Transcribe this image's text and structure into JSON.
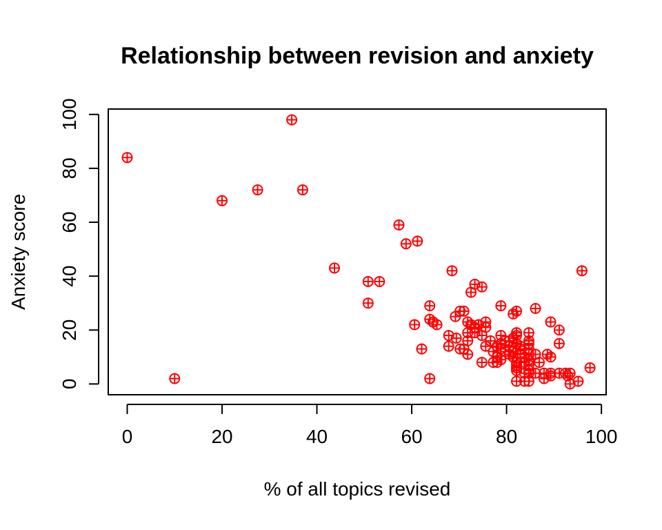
{
  "chart_data": {
    "type": "scatter",
    "title": "Relationship between revision and anxiety",
    "xlabel": "% of all topics revised",
    "ylabel": "Anxiety score",
    "xlim": [
      -4,
      101
    ],
    "ylim": [
      -4,
      102
    ],
    "x_ticks": [
      0,
      20,
      40,
      60,
      80,
      100
    ],
    "y_ticks": [
      0,
      20,
      40,
      60,
      80,
      100
    ],
    "grid": false,
    "legend": "none",
    "marker": "circle-plus",
    "colors": {
      "points": "#ff0000",
      "axes": "#000000",
      "background": "#ffffff"
    },
    "points": [
      [
        0,
        84
      ],
      [
        10,
        2
      ],
      [
        20,
        68
      ],
      [
        27.5,
        72
      ],
      [
        34.7,
        98
      ],
      [
        37,
        72
      ],
      [
        43.7,
        43
      ],
      [
        50.8,
        38
      ],
      [
        50.8,
        30
      ],
      [
        53.2,
        38
      ],
      [
        57.3,
        59
      ],
      [
        58.8,
        52
      ],
      [
        61.2,
        53
      ],
      [
        60.6,
        22
      ],
      [
        62.1,
        13
      ],
      [
        63.8,
        29
      ],
      [
        63.8,
        24
      ],
      [
        63.8,
        2
      ],
      [
        64.5,
        23
      ],
      [
        65.3,
        22
      ],
      [
        67.8,
        18
      ],
      [
        67.8,
        14
      ],
      [
        68.5,
        42
      ],
      [
        69.2,
        25
      ],
      [
        69.4,
        17
      ],
      [
        70.2,
        27
      ],
      [
        70.2,
        13
      ],
      [
        71,
        27
      ],
      [
        71,
        13
      ],
      [
        71.8,
        23
      ],
      [
        71.8,
        19
      ],
      [
        71.8,
        16
      ],
      [
        71.8,
        11
      ],
      [
        72.5,
        34
      ],
      [
        72.5,
        22
      ],
      [
        73.3,
        37
      ],
      [
        73.3,
        21
      ],
      [
        73.3,
        19
      ],
      [
        74.1,
        22
      ],
      [
        74.8,
        36
      ],
      [
        74.8,
        18
      ],
      [
        74.8,
        8
      ],
      [
        75.6,
        23
      ],
      [
        75.6,
        21
      ],
      [
        75.6,
        14
      ],
      [
        76.6,
        16
      ],
      [
        77.2,
        12
      ],
      [
        77.2,
        8
      ],
      [
        78,
        14
      ],
      [
        78,
        10
      ],
      [
        78,
        8
      ],
      [
        78.8,
        29
      ],
      [
        78.8,
        18
      ],
      [
        78.8,
        15
      ],
      [
        78.8,
        13
      ],
      [
        78.8,
        9
      ],
      [
        79.7,
        16
      ],
      [
        79.7,
        12
      ],
      [
        80.6,
        16
      ],
      [
        80.6,
        14
      ],
      [
        80.6,
        11
      ],
      [
        81.4,
        26
      ],
      [
        81.4,
        17
      ],
      [
        81.4,
        12
      ],
      [
        81.4,
        10
      ],
      [
        82.1,
        27
      ],
      [
        82.1,
        19
      ],
      [
        82.1,
        18
      ],
      [
        82.1,
        15
      ],
      [
        82.1,
        8
      ],
      [
        82.1,
        7
      ],
      [
        82.1,
        6
      ],
      [
        82.1,
        5
      ],
      [
        82.1,
        1
      ],
      [
        82.9,
        14
      ],
      [
        82.9,
        13
      ],
      [
        82.9,
        11
      ],
      [
        83.8,
        10
      ],
      [
        83.8,
        8
      ],
      [
        83.8,
        4
      ],
      [
        83.8,
        1
      ],
      [
        84.7,
        19
      ],
      [
        84.7,
        16
      ],
      [
        84.7,
        15
      ],
      [
        84.7,
        13
      ],
      [
        84.7,
        11
      ],
      [
        84.7,
        9
      ],
      [
        84.7,
        7
      ],
      [
        84.7,
        5
      ],
      [
        84.7,
        4
      ],
      [
        84.7,
        1
      ],
      [
        86.1,
        28
      ],
      [
        86.1,
        11
      ],
      [
        86.1,
        4
      ],
      [
        86.9,
        8
      ],
      [
        87.9,
        4
      ],
      [
        87.9,
        2
      ],
      [
        88.6,
        11
      ],
      [
        89.3,
        23
      ],
      [
        89.3,
        10
      ],
      [
        89.3,
        4
      ],
      [
        89.3,
        3
      ],
      [
        91.1,
        20
      ],
      [
        91.1,
        15
      ],
      [
        91.1,
        4
      ],
      [
        92.4,
        4
      ],
      [
        92.9,
        3
      ],
      [
        93.4,
        4
      ],
      [
        93.4,
        0
      ],
      [
        95.1,
        1
      ],
      [
        95.9,
        42
      ],
      [
        97.6,
        6
      ]
    ]
  }
}
